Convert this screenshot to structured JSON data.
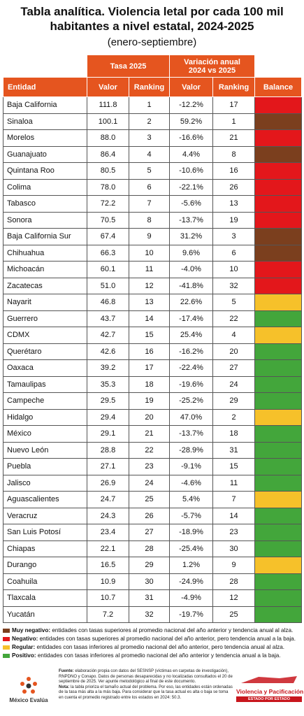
{
  "header": {
    "title": "Tabla analítica. Violencia letal por cada 100 mil habitantes a nivel estatal, 2024-2025",
    "subtitle": "(enero-septiembre)"
  },
  "table": {
    "group_headers": [
      "Tasa 2025",
      "Variación anual\n2024 vs 2025"
    ],
    "columns": [
      "Entidad",
      "Valor",
      "Ranking",
      "Valor",
      "Ranking",
      "Balance"
    ],
    "rows": [
      [
        "Baja California",
        "111.8",
        "1",
        "-12.2%",
        "17"
      ],
      [
        "Sinaloa",
        "100.1",
        "2",
        "59.2%",
        "1"
      ],
      [
        "Morelos",
        "88.0",
        "3",
        "-16.6%",
        "21"
      ],
      [
        "Guanajuato",
        "86.4",
        "4",
        "4.4%",
        "8"
      ],
      [
        "Quintana Roo",
        "80.5",
        "5",
        "-10.6%",
        "16"
      ],
      [
        "Colima",
        "78.0",
        "6",
        "-22.1%",
        "26"
      ],
      [
        "Tabasco",
        "72.2",
        "7",
        "-5.6%",
        "13"
      ],
      [
        "Sonora",
        "70.5",
        "8",
        "-13.7%",
        "19"
      ],
      [
        "Baja California Sur",
        "67.4",
        "9",
        "31.2%",
        "3"
      ],
      [
        "Chihuahua",
        "66.3",
        "10",
        "9.6%",
        "6"
      ],
      [
        "Michoacán",
        "60.1",
        "11",
        "-4.0%",
        "10"
      ],
      [
        "Zacatecas",
        "51.0",
        "12",
        "-41.8%",
        "32"
      ],
      [
        "Nayarit",
        "46.8",
        "13",
        "22.6%",
        "5"
      ],
      [
        "Guerrero",
        "43.7",
        "14",
        "-17.4%",
        "22"
      ],
      [
        "CDMX",
        "42.7",
        "15",
        "25.4%",
        "4"
      ],
      [
        "Querétaro",
        "42.6",
        "16",
        "-16.2%",
        "20"
      ],
      [
        "Oaxaca",
        "39.2",
        "17",
        "-22.4%",
        "27"
      ],
      [
        "Tamaulipas",
        "35.3",
        "18",
        "-19.6%",
        "24"
      ],
      [
        "Campeche",
        "29.5",
        "19",
        "-25.2%",
        "29"
      ],
      [
        "Hidalgo",
        "29.4",
        "20",
        "47.0%",
        "2"
      ],
      [
        "México",
        "29.1",
        "21",
        "-13.7%",
        "18"
      ],
      [
        "Nuevo León",
        "28.8",
        "22",
        "-28.9%",
        "31"
      ],
      [
        "Puebla",
        "27.1",
        "23",
        "-9.1%",
        "15"
      ],
      [
        "Jalisco",
        "26.9",
        "24",
        "-4.6%",
        "11"
      ],
      [
        "Aguascalientes",
        "24.7",
        "25",
        "5.4%",
        "7"
      ],
      [
        "Veracruz",
        "24.3",
        "26",
        "-5.7%",
        "14"
      ],
      [
        "San Luis Potosí",
        "23.4",
        "27",
        "-18.9%",
        "23"
      ],
      [
        "Chiapas",
        "22.1",
        "28",
        "-25.4%",
        "30"
      ],
      [
        "Durango",
        "16.5",
        "29",
        "1.2%",
        "9"
      ],
      [
        "Coahuila",
        "10.9",
        "30",
        "-24.9%",
        "28"
      ],
      [
        "Tlaxcala",
        "10.7",
        "31",
        "-4.9%",
        "12"
      ],
      [
        "Yucatán",
        "7.2",
        "32",
        "-19.7%",
        "25"
      ]
    ],
    "balance_colors": [
      "#e3171b",
      "#7b3f1e",
      "#e3171b",
      "#7b3f1e",
      "#e3171b",
      "#e3171b",
      "#e3171b",
      "#e3171b",
      "#7b3f1e",
      "#7b3f1e",
      "#e3171b",
      "#e3171b",
      "#f6c12a",
      "#43a63b",
      "#f6c12a",
      "#43a63b",
      "#43a63b",
      "#43a63b",
      "#43a63b",
      "#f6c12a",
      "#43a63b",
      "#43a63b",
      "#43a63b",
      "#43a63b",
      "#f6c12a",
      "#43a63b",
      "#43a63b",
      "#43a63b",
      "#f6c12a",
      "#43a63b",
      "#43a63b",
      "#43a63b"
    ]
  },
  "legend": [
    {
      "label": "Muy negativo:",
      "text": "entidades con tasas superiores al promedio nacional del año anterior y tendencia anual al alza.",
      "color": "#7b3f1e"
    },
    {
      "label": "Negativo:",
      "text": "entidades con tasas superiores al promedio nacional del año anterior, pero tendencia anual a la baja.",
      "color": "#e3171b"
    },
    {
      "label": "Regular:",
      "text": "entidades con tasas inferiores al promedio nacional del año anterior, pero tendencia anual al alza.",
      "color": "#f6c12a"
    },
    {
      "label": "Positivo:",
      "text": "entidades con tasas inferiores al promedio nacional del año anterior y tendencia anual a la baja.",
      "color": "#43a63b"
    }
  ],
  "footer": {
    "source_label": "Fuente:",
    "source": "elaboración propia con datos del SESNSP (víctimas en carpetas de investigación), RNPDNO y Conapo. Datos de personas desaparecidas y no localizadas consultados el 20 de septiembre de 2025. Ver apunte metodológico al final de este documento.",
    "note_label": "Nota:",
    "note": "la tabla prioriza el tamaño actual del problema. Por eso, las entidades están ordenadas de la tasa más alta a la más baja. Para considerar que la tasa actual es alta o baja se toma en cuenta el promedio registrado entre los estados en 2024: 50.3.",
    "logos": [
      "México Evalúa",
      "Violencia y Pacificación",
      "ESTADO POR ESTADO"
    ]
  }
}
